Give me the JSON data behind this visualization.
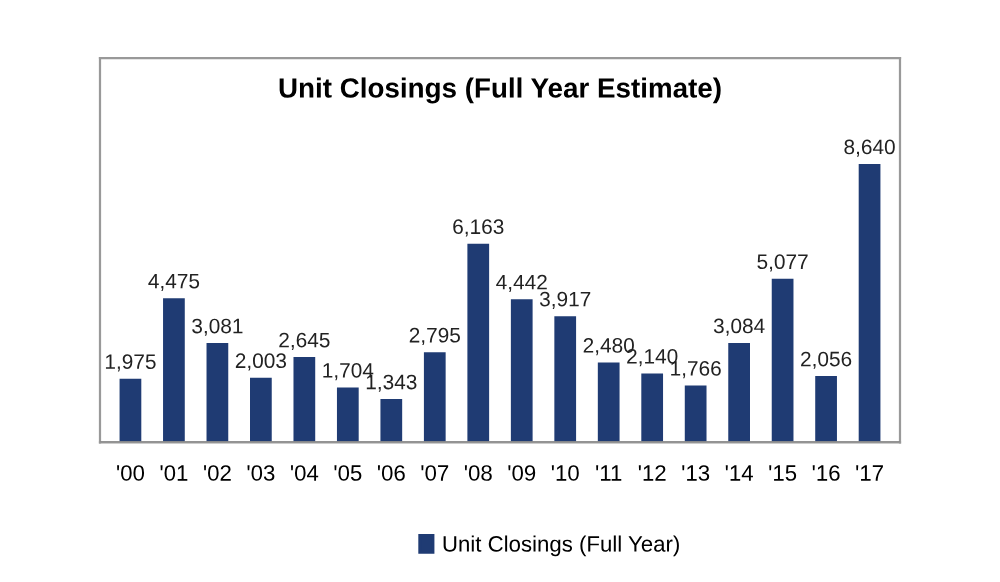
{
  "chart_data": {
    "type": "bar",
    "title": "Unit Closings (Full Year Estimate)",
    "categories": [
      "'00",
      "'01",
      "'02",
      "'03",
      "'04",
      "'05",
      "'06",
      "'07",
      "'08",
      "'09",
      "'10",
      "'11",
      "'12",
      "'13",
      "'14",
      "'15",
      "'16",
      "'17"
    ],
    "series": [
      {
        "name": "Unit Closings (Full Year)",
        "color": "#1f3b73",
        "values": [
          1975,
          4475,
          3081,
          2003,
          2645,
          1704,
          1343,
          2795,
          6163,
          4442,
          3917,
          2480,
          2140,
          1766,
          3084,
          5077,
          2056,
          8640
        ],
        "value_labels": [
          "1,975",
          "4,475",
          "3,081",
          "2,003",
          "2,645",
          "1,704",
          "1,343",
          "2,795",
          "6,163",
          "4,442",
          "3,917",
          "2,480",
          "2,140",
          "1,766",
          "3,084",
          "5,077",
          "2,056",
          "8,640"
        ]
      }
    ],
    "legend": "bottom",
    "grid": false
  }
}
